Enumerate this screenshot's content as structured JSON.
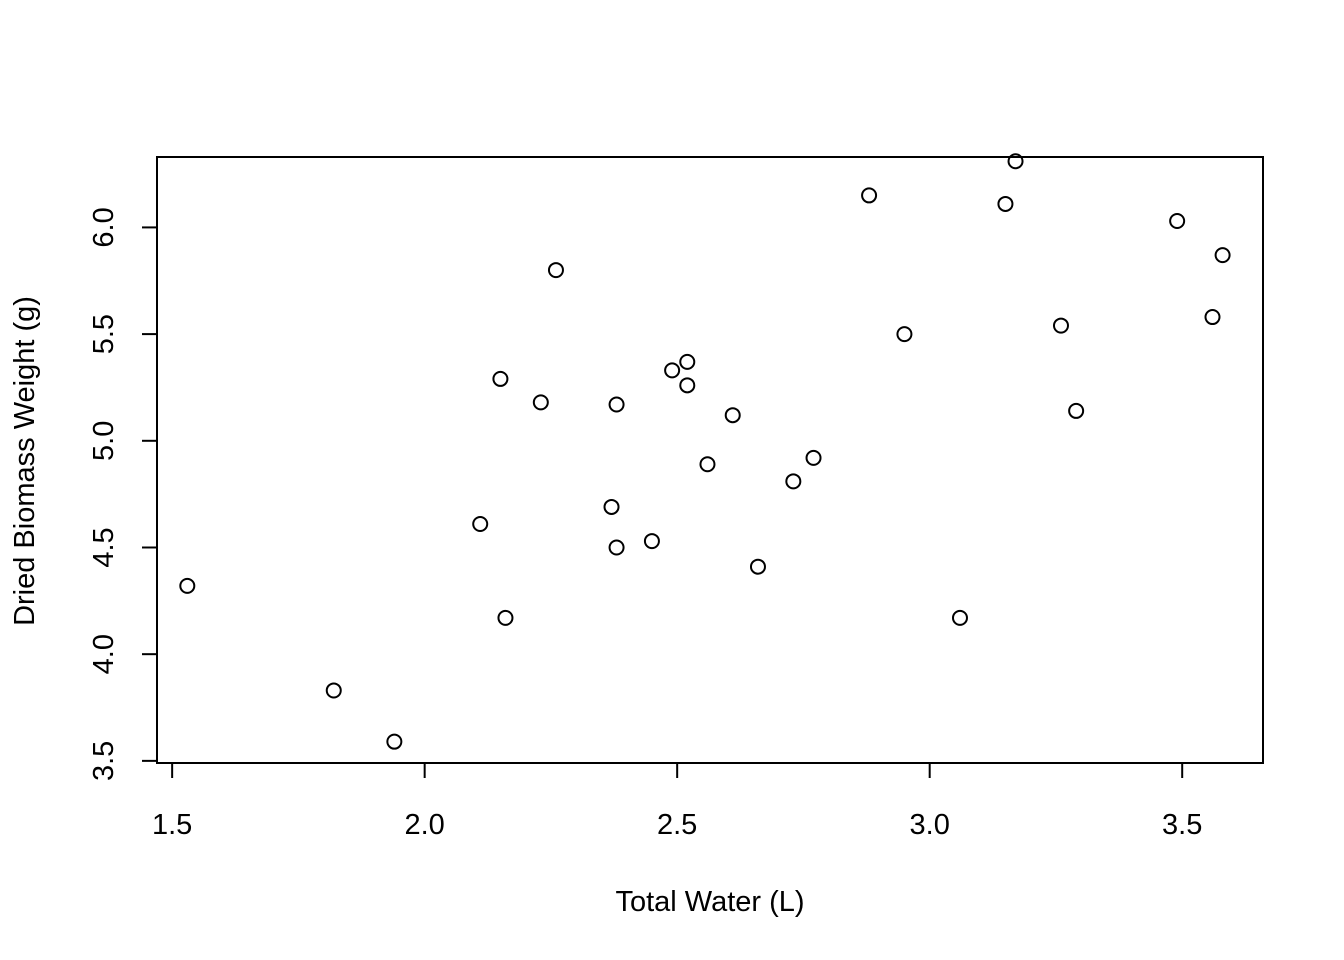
{
  "chart_data": {
    "type": "scatter",
    "title": "",
    "xlabel": "Total Water (L)",
    "ylabel": "Dried Biomass Weight (g)",
    "xlim": [
      1.47,
      3.66
    ],
    "ylim": [
      3.49,
      6.33
    ],
    "x_ticks": [
      1.5,
      2.0,
      2.5,
      3.0,
      3.5
    ],
    "x_tick_labels": [
      "1.5",
      "2.0",
      "2.5",
      "3.0",
      "3.5"
    ],
    "y_ticks": [
      3.5,
      4.0,
      4.5,
      5.0,
      5.5,
      6.0
    ],
    "y_tick_labels": [
      "3.5",
      "4.0",
      "4.5",
      "5.0",
      "5.5",
      "6.0"
    ],
    "grid": false,
    "legend": "none",
    "marker": "open-circle",
    "colors": {
      "points": "#000000",
      "axes": "#000000",
      "background": "#ffffff"
    },
    "points": [
      {
        "x": 1.53,
        "y": 4.32
      },
      {
        "x": 1.82,
        "y": 3.83
      },
      {
        "x": 1.94,
        "y": 3.59
      },
      {
        "x": 2.11,
        "y": 4.61
      },
      {
        "x": 2.15,
        "y": 5.29
      },
      {
        "x": 2.16,
        "y": 4.17
      },
      {
        "x": 2.23,
        "y": 5.18
      },
      {
        "x": 2.26,
        "y": 5.8
      },
      {
        "x": 2.37,
        "y": 4.69
      },
      {
        "x": 2.38,
        "y": 4.5
      },
      {
        "x": 2.38,
        "y": 5.17
      },
      {
        "x": 2.45,
        "y": 4.53
      },
      {
        "x": 2.49,
        "y": 5.33
      },
      {
        "x": 2.52,
        "y": 5.26
      },
      {
        "x": 2.52,
        "y": 5.37
      },
      {
        "x": 2.56,
        "y": 4.89
      },
      {
        "x": 2.61,
        "y": 5.12
      },
      {
        "x": 2.66,
        "y": 4.41
      },
      {
        "x": 2.73,
        "y": 4.81
      },
      {
        "x": 2.77,
        "y": 4.92
      },
      {
        "x": 2.88,
        "y": 6.15
      },
      {
        "x": 2.95,
        "y": 5.5
      },
      {
        "x": 3.06,
        "y": 4.17
      },
      {
        "x": 3.15,
        "y": 6.11
      },
      {
        "x": 3.17,
        "y": 6.31
      },
      {
        "x": 3.26,
        "y": 5.54
      },
      {
        "x": 3.29,
        "y": 5.14
      },
      {
        "x": 3.49,
        "y": 6.03
      },
      {
        "x": 3.56,
        "y": 5.58
      },
      {
        "x": 3.58,
        "y": 5.87
      }
    ]
  }
}
